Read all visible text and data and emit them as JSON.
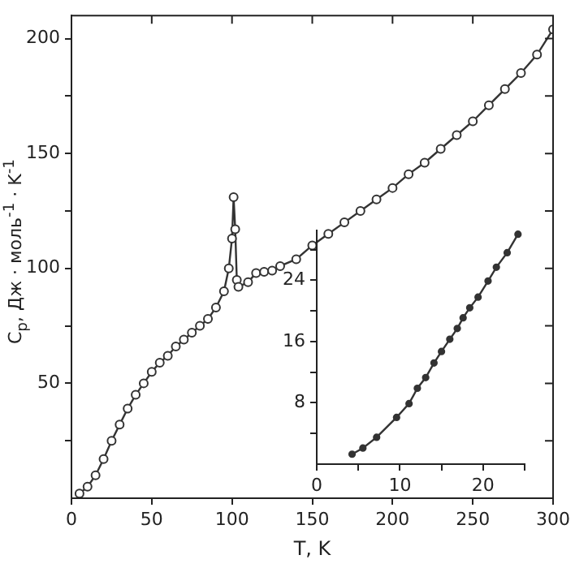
{
  "chart_data": [
    {
      "type": "line",
      "xlabel": "T, K",
      "ylabel": "C$_{p}$, Дж · моль$^{-1}$ · K$^{-1}$",
      "marker": "circle",
      "color": "#333333",
      "x": [
        5,
        10,
        15,
        20,
        25,
        30,
        35,
        40,
        45,
        50,
        55,
        60,
        65,
        70,
        75,
        80,
        85,
        90,
        95,
        98,
        100,
        101,
        102,
        103,
        104,
        110,
        115,
        120,
        125,
        130,
        140,
        150,
        160,
        170,
        180,
        190,
        200,
        210,
        220,
        230,
        240,
        250,
        260,
        270,
        280,
        290,
        300
      ],
      "values": [
        2,
        5,
        10,
        17,
        25,
        32,
        39,
        45,
        50,
        55,
        59,
        62,
        66,
        69,
        72,
        75,
        78,
        83,
        90,
        100,
        113,
        131,
        117,
        95,
        92,
        94,
        98,
        98.5,
        99,
        101,
        104,
        110,
        115,
        120,
        125,
        130,
        135,
        141,
        146,
        152,
        158,
        164,
        171,
        178,
        185,
        193,
        204
      ],
      "xlim": [
        0,
        300
      ],
      "ylim": [
        0,
        210
      ],
      "xticks": [
        0,
        50,
        100,
        150,
        200,
        250,
        300
      ],
      "yticks": [
        {
          "value": 25,
          "label": null
        },
        50,
        {
          "value": 75,
          "label": null
        },
        100,
        {
          "value": 125,
          "label": null
        },
        150,
        {
          "value": 175,
          "label": null
        },
        200
      ]
    },
    {
      "type": "line",
      "marker": "circle",
      "color": "#333333",
      "x": [
        4.25,
        5.55,
        7.2,
        9.6,
        11.1,
        12.1,
        13.1,
        14.1,
        15.0,
        16.0,
        16.9,
        17.6,
        18.4,
        19.4,
        20.6,
        21.6,
        22.9,
        24.2
      ],
      "values": [
        1.3,
        2.1,
        3.5,
        6.1,
        7.9,
        9.9,
        11.3,
        13.2,
        14.7,
        16.3,
        17.7,
        19.1,
        20.4,
        21.8,
        23.9,
        25.7,
        27.6,
        30.0
      ],
      "xlim": [
        0,
        25
      ],
      "ylim": [
        0,
        30.5
      ],
      "xticks": [
        0,
        {
          "value": 5,
          "label": null
        },
        10,
        {
          "value": 15,
          "label": null
        },
        20,
        {
          "value": 25,
          "label": null
        }
      ],
      "yticks": [
        {
          "value": 4,
          "label": null
        },
        8,
        {
          "value": 12,
          "label": null
        },
        16,
        {
          "value": 20,
          "label": null
        },
        24,
        {
          "value": 28,
          "label": null
        }
      ]
    }
  ]
}
